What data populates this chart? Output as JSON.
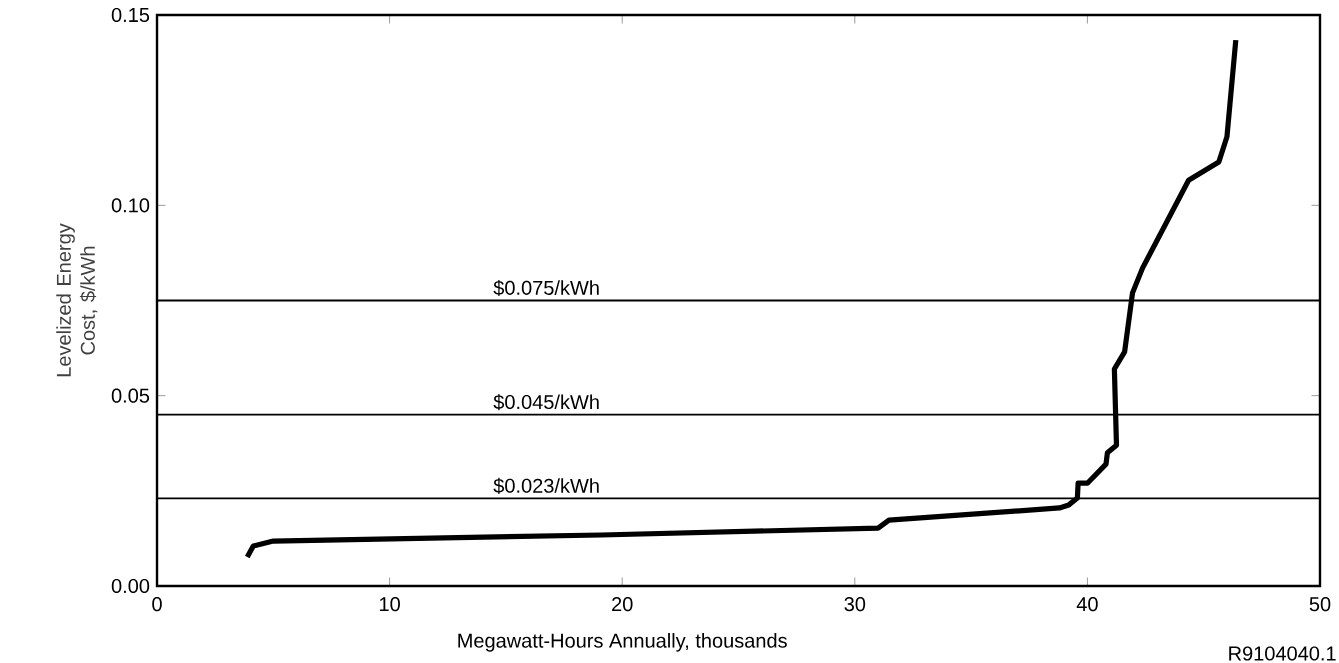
{
  "chart_data": {
    "type": "line",
    "xlabel": "Megawatt-Hours Annually, thousands",
    "ylabel": "Levelized Energy Cost, $/kWh",
    "x": [
      3.88,
      4.14,
      5.0,
      19.1,
      31.0,
      31.47,
      38.8,
      39.2,
      39.57,
      39.6,
      40.0,
      40.8,
      40.86,
      41.25,
      41.16,
      41.6,
      41.94,
      42.37,
      44.35,
      45.65,
      46.0,
      46.38
    ],
    "series": [
      {
        "color": "#000000",
        "values": [
          0.0076,
          0.0105,
          0.0118,
          0.0134,
          0.0152,
          0.0173,
          0.0205,
          0.0213,
          0.0231,
          0.027,
          0.027,
          0.032,
          0.035,
          0.037,
          0.057,
          0.0615,
          0.077,
          0.0835,
          0.1066,
          0.1114,
          0.118,
          0.1434
        ]
      }
    ],
    "xlim": [
      0,
      50
    ],
    "ylim": [
      0,
      0.15
    ],
    "xticks": [
      0,
      10,
      20,
      30,
      40,
      50
    ],
    "yticks": [
      {
        "value": 0,
        "label": "0.00"
      },
      {
        "value": 0.05,
        "label": "0.05"
      },
      {
        "value": 0.1,
        "label": "0.10"
      },
      {
        "value": 0.15,
        "label": "0.15"
      }
    ],
    "ref_lines": [
      {
        "axis": "y",
        "value": 0.075,
        "label": "$0.075/kWh"
      },
      {
        "axis": "y",
        "value": 0.045,
        "label": "$0.045/kWh"
      },
      {
        "axis": "y",
        "value": 0.023,
        "label": "$0.023/kWh"
      }
    ],
    "annotations": [
      "R9104040.1"
    ],
    "marker": "none",
    "line_style": "solid"
  }
}
